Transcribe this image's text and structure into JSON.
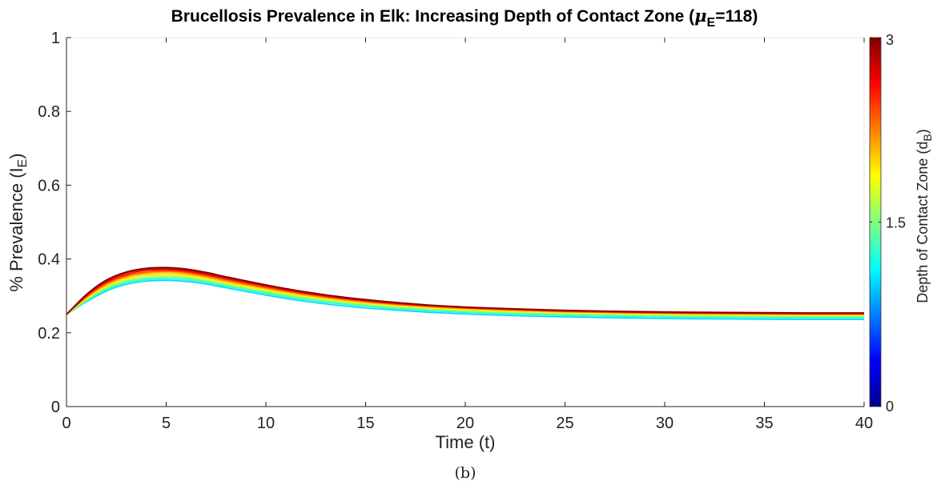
{
  "chart_data": {
    "type": "line",
    "title": {
      "prefix": "Brucellosis Prevalence in Elk: Increasing Depth of Contact Zone (",
      "mu": "μ",
      "mu_sub": "E",
      "suffix": "=118)"
    },
    "xlabel": "Time (t)",
    "ylabel": {
      "main": "% Prevalence (I",
      "sub": "E",
      "end": ")"
    },
    "xlim": [
      0,
      40
    ],
    "ylim": [
      0,
      1
    ],
    "xticks": [
      "0",
      "5",
      "10",
      "15",
      "20",
      "25",
      "30",
      "35",
      "40"
    ],
    "yticks": [
      "0",
      "0.2",
      "0.4",
      "0.6",
      "0.8",
      "1"
    ],
    "grid": false,
    "colorbar": {
      "label": {
        "main": "Depth of Contact Zone (d",
        "sub": "B",
        "end": ")"
      },
      "range": [
        0,
        3
      ],
      "ticks": [
        "0",
        "1.5",
        "3"
      ],
      "colormap": "jet"
    },
    "series_parameter": "d_B",
    "x": [
      0,
      1,
      2,
      3,
      4,
      5,
      6,
      7,
      8,
      10,
      12,
      14,
      16,
      18,
      20,
      22,
      25,
      28,
      31,
      34,
      37,
      40
    ],
    "series": [
      {
        "d_B": 1.0,
        "values": [
          0.25,
          0.284,
          0.313,
          0.331,
          0.34,
          0.342,
          0.339,
          0.332,
          0.322,
          0.302,
          0.285,
          0.272,
          0.263,
          0.256,
          0.251,
          0.247,
          0.243,
          0.24,
          0.238,
          0.237,
          0.236,
          0.236
        ]
      },
      {
        "d_B": 1.2,
        "values": [
          0.25,
          0.286,
          0.316,
          0.335,
          0.344,
          0.346,
          0.343,
          0.336,
          0.326,
          0.306,
          0.289,
          0.276,
          0.267,
          0.26,
          0.255,
          0.251,
          0.247,
          0.244,
          0.242,
          0.241,
          0.24,
          0.24
        ]
      },
      {
        "d_B": 1.4,
        "values": [
          0.25,
          0.288,
          0.319,
          0.338,
          0.347,
          0.35,
          0.347,
          0.339,
          0.329,
          0.309,
          0.292,
          0.279,
          0.27,
          0.263,
          0.258,
          0.254,
          0.25,
          0.247,
          0.245,
          0.244,
          0.243,
          0.243
        ]
      },
      {
        "d_B": 1.6,
        "values": [
          0.25,
          0.29,
          0.322,
          0.341,
          0.351,
          0.354,
          0.35,
          0.342,
          0.332,
          0.312,
          0.295,
          0.282,
          0.272,
          0.265,
          0.26,
          0.256,
          0.252,
          0.249,
          0.247,
          0.246,
          0.245,
          0.245
        ]
      },
      {
        "d_B": 1.8,
        "values": [
          0.25,
          0.292,
          0.325,
          0.345,
          0.355,
          0.357,
          0.354,
          0.346,
          0.335,
          0.315,
          0.298,
          0.285,
          0.275,
          0.268,
          0.262,
          0.258,
          0.254,
          0.251,
          0.249,
          0.248,
          0.247,
          0.247
        ]
      },
      {
        "d_B": 2.0,
        "values": [
          0.25,
          0.294,
          0.328,
          0.348,
          0.358,
          0.361,
          0.357,
          0.349,
          0.338,
          0.318,
          0.3,
          0.287,
          0.277,
          0.27,
          0.264,
          0.26,
          0.256,
          0.253,
          0.251,
          0.25,
          0.249,
          0.249
        ]
      },
      {
        "d_B": 2.2,
        "values": [
          0.25,
          0.296,
          0.331,
          0.352,
          0.362,
          0.365,
          0.361,
          0.352,
          0.341,
          0.321,
          0.303,
          0.289,
          0.279,
          0.271,
          0.266,
          0.262,
          0.257,
          0.254,
          0.252,
          0.251,
          0.25,
          0.25
        ]
      },
      {
        "d_B": 2.4,
        "values": [
          0.25,
          0.298,
          0.334,
          0.355,
          0.365,
          0.368,
          0.364,
          0.355,
          0.344,
          0.323,
          0.305,
          0.291,
          0.28,
          0.273,
          0.267,
          0.263,
          0.258,
          0.255,
          0.253,
          0.252,
          0.251,
          0.251
        ]
      },
      {
        "d_B": 2.6,
        "values": [
          0.25,
          0.3,
          0.337,
          0.358,
          0.369,
          0.371,
          0.367,
          0.358,
          0.347,
          0.326,
          0.307,
          0.293,
          0.282,
          0.274,
          0.268,
          0.264,
          0.259,
          0.256,
          0.254,
          0.253,
          0.252,
          0.252
        ]
      },
      {
        "d_B": 2.8,
        "values": [
          0.25,
          0.302,
          0.34,
          0.362,
          0.372,
          0.374,
          0.37,
          0.361,
          0.35,
          0.328,
          0.309,
          0.294,
          0.283,
          0.275,
          0.269,
          0.265,
          0.26,
          0.257,
          0.255,
          0.254,
          0.253,
          0.253
        ]
      },
      {
        "d_B": 3.0,
        "values": [
          0.25,
          0.304,
          0.343,
          0.365,
          0.375,
          0.377,
          0.373,
          0.364,
          0.352,
          0.33,
          0.311,
          0.296,
          0.285,
          0.276,
          0.27,
          0.266,
          0.261,
          0.258,
          0.256,
          0.255,
          0.254,
          0.254
        ]
      }
    ]
  },
  "caption": "(b)"
}
